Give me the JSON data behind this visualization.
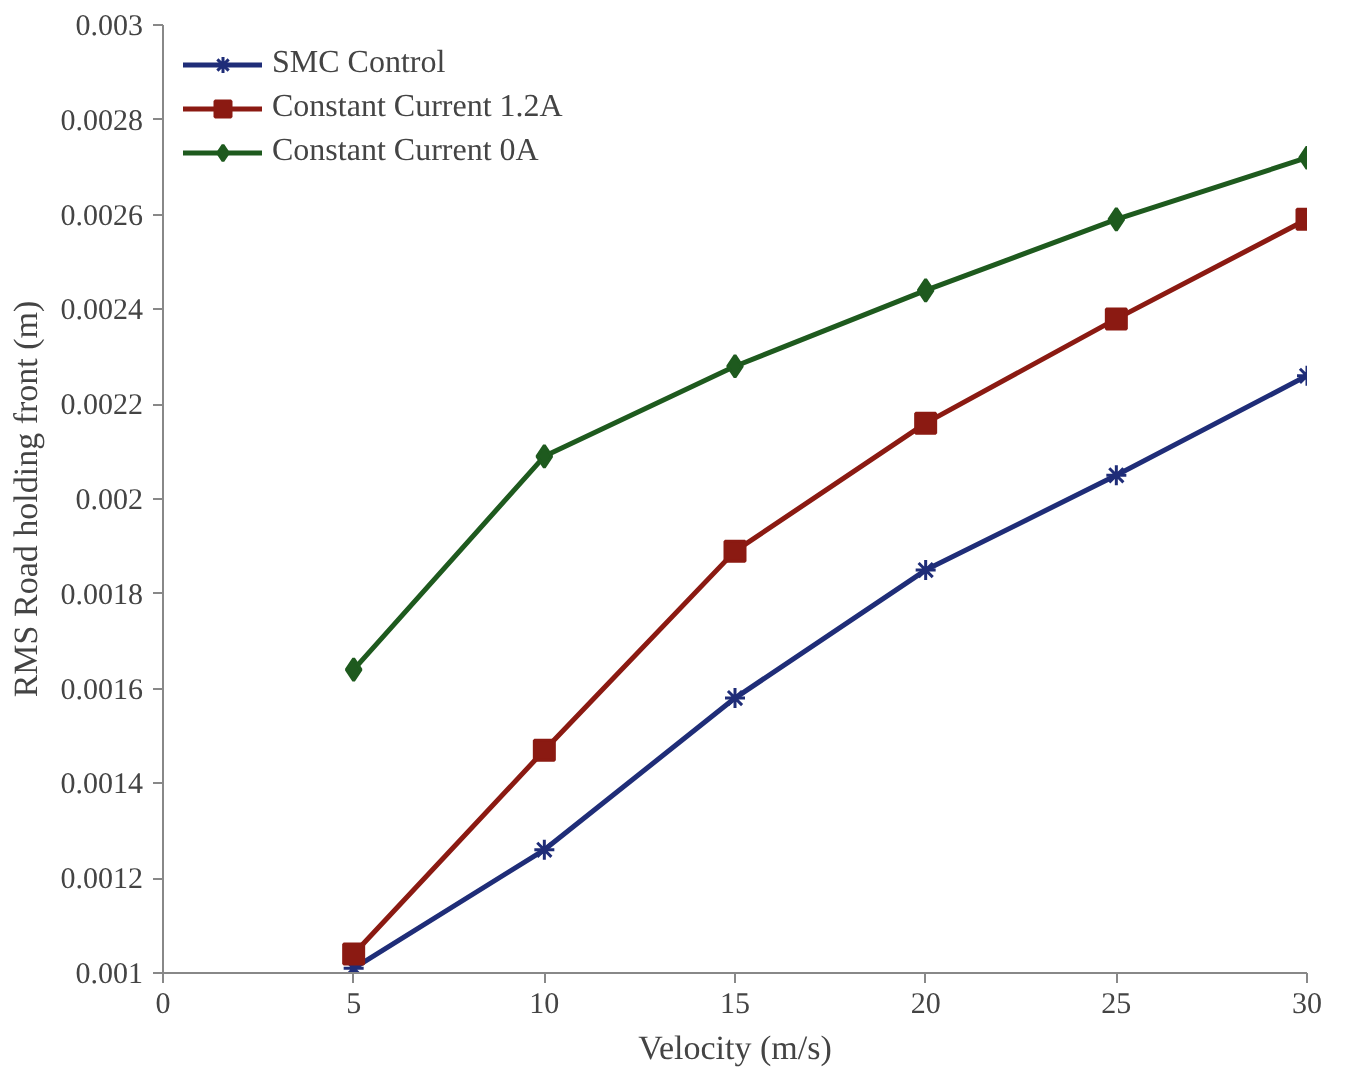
{
  "chart_data": {
    "type": "line",
    "xlabel": "Velocity (m/s)",
    "ylabel": "RMS Road holding front (m)",
    "x": [
      5,
      10,
      15,
      20,
      25,
      30
    ],
    "series": [
      {
        "name": "SMC Control",
        "color": "#1f2d78",
        "marker": "cross",
        "values": [
          0.00101,
          0.00126,
          0.00158,
          0.00185,
          0.00205,
          0.00226
        ]
      },
      {
        "name": "Constant Current 1.2A",
        "color": "#8b1a12",
        "marker": "square",
        "values": [
          0.00104,
          0.00147,
          0.00189,
          0.00216,
          0.00238,
          0.00259
        ]
      },
      {
        "name": "Constant Current 0A",
        "color": "#1e5a1e",
        "marker": "diamond",
        "values": [
          0.00164,
          0.00209,
          0.00228,
          0.00244,
          0.00259,
          0.00272
        ]
      }
    ],
    "xlim": [
      0,
      30
    ],
    "xticks": [
      0,
      5,
      10,
      15,
      20,
      25,
      30
    ],
    "ylim": [
      0.001,
      0.003
    ],
    "yticks": [
      {
        "value": 0.001,
        "label": "0.001"
      },
      {
        "value": 0.0012,
        "label": "0.0012"
      },
      {
        "value": 0.0014,
        "label": "0.0014"
      },
      {
        "value": 0.0016,
        "label": "0.0016"
      },
      {
        "value": 0.0018,
        "label": "0.0018"
      },
      {
        "value": 0.002,
        "label": "0.002"
      },
      {
        "value": 0.0022,
        "label": "0.0022"
      },
      {
        "value": 0.0024,
        "label": "0.0024"
      },
      {
        "value": 0.0026,
        "label": "0.0026"
      },
      {
        "value": 0.0028,
        "label": "0.0028"
      },
      {
        "value": 0.003,
        "label": "0.003"
      }
    ],
    "grid": false,
    "legend": "top left"
  }
}
